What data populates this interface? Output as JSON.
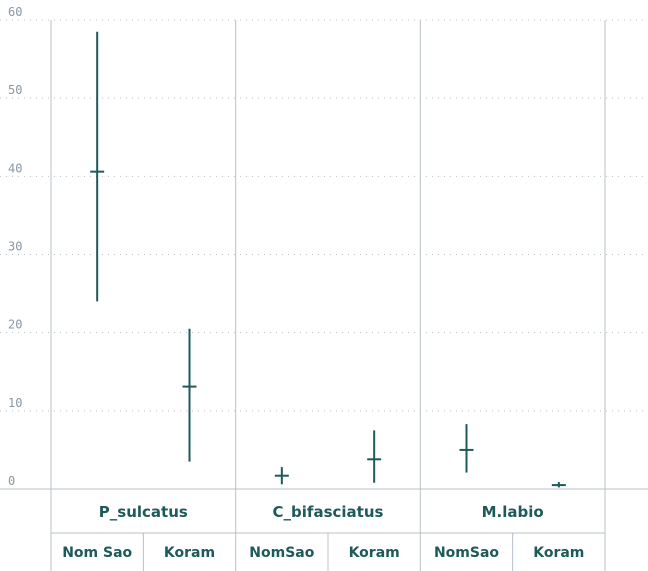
{
  "chart_data": {
    "type": "errorbar",
    "title": "",
    "xlabel": "",
    "ylabel": "",
    "ylim": [
      0,
      60
    ],
    "yticks": [
      "0",
      "10",
      "20",
      "30",
      "40",
      "50",
      "60"
    ],
    "grid": true,
    "colors": {
      "series": "#1e5a5a",
      "grid": "#b8c0c8",
      "text": "#1e5a5a",
      "tick": "#8a96a3"
    },
    "groups": [
      {
        "label": "P_sulcatus",
        "items": [
          {
            "label": "Nom Sao",
            "mean": 40.6,
            "low": 24.0,
            "high": 58.5
          },
          {
            "label": "Koram",
            "mean": 13.1,
            "low": 3.5,
            "high": 20.5
          }
        ]
      },
      {
        "label": "C_bifasciatus",
        "items": [
          {
            "label": "NomSao",
            "mean": 1.7,
            "low": 0.6,
            "high": 2.8
          },
          {
            "label": "Koram",
            "mean": 3.8,
            "low": 0.8,
            "high": 7.5
          }
        ]
      },
      {
        "label": "M.labio",
        "items": [
          {
            "label": "NomSao",
            "mean": 5.0,
            "low": 2.1,
            "high": 8.3
          },
          {
            "label": "Koram",
            "mean": 0.5,
            "low": 0.2,
            "high": 0.9
          }
        ]
      }
    ]
  }
}
